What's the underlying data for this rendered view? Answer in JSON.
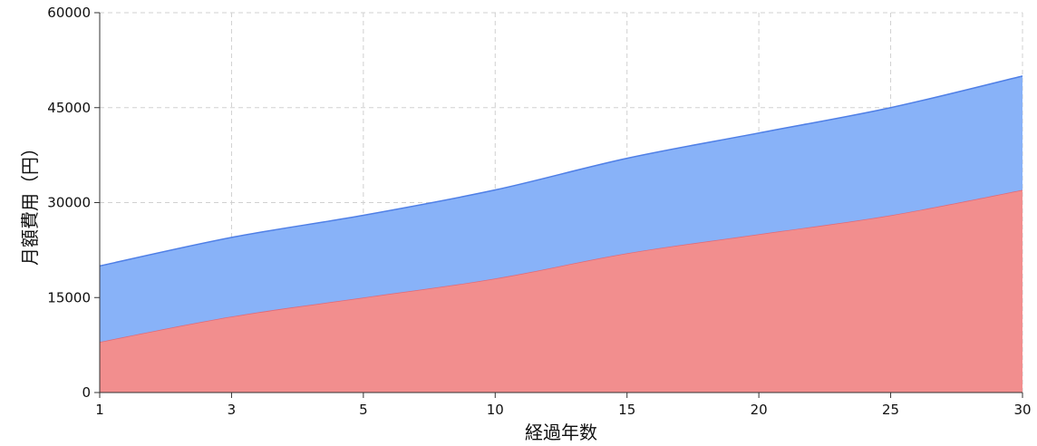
{
  "chart_data": {
    "type": "area",
    "stacked": true,
    "categories": [
      "1",
      "3",
      "5",
      "10",
      "15",
      "20",
      "25",
      "30"
    ],
    "series": [
      {
        "values": [
          8000,
          12000,
          15000,
          18000,
          22000,
          25000,
          28000,
          32000
        ],
        "color": "#f28e8e",
        "line_color": "#e06a78"
      },
      {
        "values": [
          12000,
          12500,
          13000,
          14000,
          15000,
          16000,
          17000,
          18000
        ],
        "color": "#88b2f8",
        "line_color": "#4f7fe6"
      }
    ],
    "y_ticks": [
      "0",
      "15000",
      "30000",
      "45000",
      "60000"
    ],
    "ylim": [
      0,
      60000
    ],
    "xlabel": "経過年数",
    "ylabel": "月額費用（円）",
    "grid": true
  }
}
